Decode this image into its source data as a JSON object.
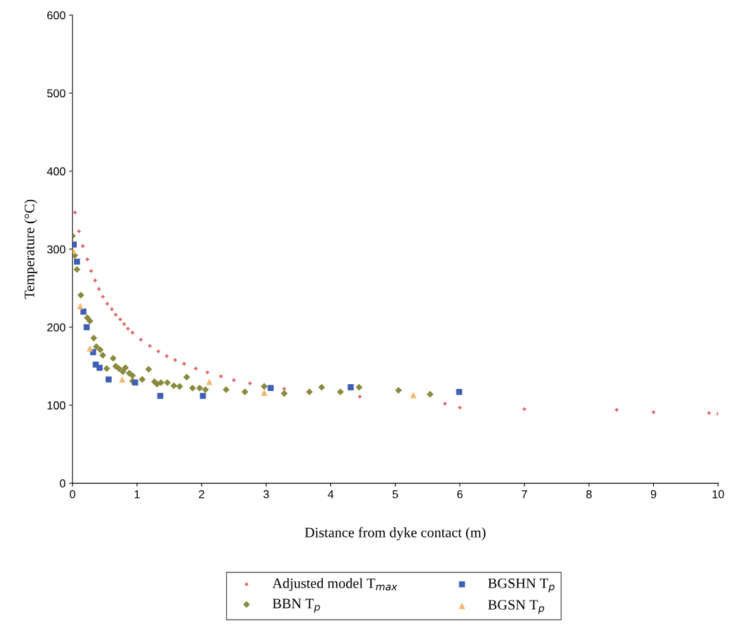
{
  "chart_data": {
    "type": "scatter",
    "xlabel": "Distance from dyke contact (m)",
    "ylabel": "Temperature (°C)",
    "xlim": [
      0,
      10
    ],
    "xticks": [
      0,
      1,
      2,
      3,
      4,
      5,
      6,
      7,
      8,
      9,
      10
    ],
    "ylim": [
      0,
      600
    ],
    "yticks": [
      0,
      100,
      200,
      300,
      400,
      500,
      600
    ],
    "grid": false,
    "legend": "bottom",
    "series": [
      {
        "name": "Adjusted model T$_{max}$",
        "color": "#e06a6a",
        "marker": "diamond",
        "x": [
          0.04,
          0.1,
          0.16,
          0.23,
          0.29,
          0.35,
          0.41,
          0.47,
          0.54,
          0.61,
          0.67,
          0.74,
          0.8,
          0.86,
          0.93,
          1.06,
          1.2,
          1.33,
          1.46,
          1.59,
          1.73,
          1.91,
          2.09,
          2.3,
          2.5,
          2.75,
          3.28,
          4.45,
          5.77,
          6.0,
          7.0,
          8.43,
          9.0,
          9.86,
          10.0
        ],
        "values": [
          347,
          323,
          304,
          287,
          272,
          260,
          249,
          239,
          230,
          223,
          216,
          210,
          204,
          198,
          193,
          184,
          176,
          169,
          163,
          158,
          153,
          147,
          142,
          137,
          132,
          128,
          121,
          111,
          102,
          97,
          95,
          94,
          91,
          90,
          89
        ]
      },
      {
        "name": "BBN T$_{p}$",
        "color": "#8a8a3e",
        "marker": "diamond",
        "x": [
          0.0,
          0.035,
          0.07,
          0.13,
          0.23,
          0.27,
          0.33,
          0.37,
          0.43,
          0.47,
          0.53,
          0.63,
          0.67,
          0.72,
          0.78,
          0.82,
          0.88,
          0.93,
          0.93,
          1.08,
          1.18,
          1.27,
          1.31,
          1.37,
          1.47,
          1.57,
          1.66,
          1.77,
          1.86,
          1.97,
          2.06,
          2.38,
          2.67,
          2.97,
          3.28,
          3.67,
          3.86,
          4.15,
          4.44,
          5.05,
          5.54
        ],
        "values": [
          317,
          292,
          274,
          241,
          212,
          208,
          186,
          175,
          171,
          164,
          147,
          160,
          150,
          147,
          143,
          148,
          141,
          138,
          131,
          133,
          146,
          130,
          127,
          129,
          129,
          125,
          124,
          136,
          122,
          122,
          120,
          120,
          117,
          124,
          115,
          117,
          123,
          117,
          123,
          119,
          114
        ]
      },
      {
        "name": "BGSHN T$_{p}$",
        "color": "#3f5fb5",
        "marker": "square",
        "x": [
          0.02,
          0.07,
          0.17,
          0.22,
          0.32,
          0.36,
          0.42,
          0.56,
          0.97,
          1.36,
          2.02,
          3.07,
          4.31,
          5.99
        ],
        "values": [
          306,
          284,
          220,
          200,
          168,
          152,
          148,
          133,
          129,
          112,
          112,
          122,
          123,
          117
        ]
      },
      {
        "name": "BGSN T$_{p}$",
        "color": "#f2b66e",
        "marker": "triangle",
        "x": [
          0.01,
          0.12,
          0.27,
          0.77,
          2.12,
          2.97,
          5.28
        ],
        "values": [
          298,
          227,
          173,
          133,
          130,
          116,
          113
        ]
      }
    ]
  }
}
